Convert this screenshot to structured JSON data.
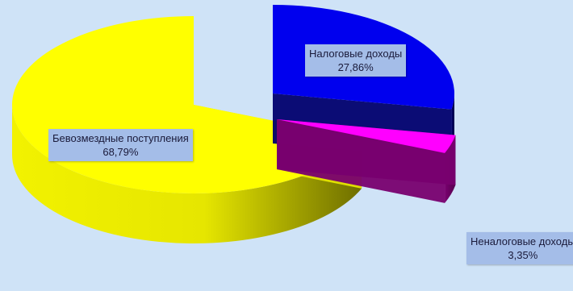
{
  "chart_data": {
    "type": "pie",
    "title": "",
    "three_d": true,
    "exploded": true,
    "slices": [
      {
        "label": "Налоговые доходы",
        "value": 27.86,
        "value_text": "27,86%",
        "color": "#0000ee"
      },
      {
        "label": "Неналоговые доходы",
        "value": 3.35,
        "value_text": "3,35%",
        "color": "#ff00ff"
      },
      {
        "label": "Бевозмездные поступления",
        "value": 68.79,
        "value_text": "68,79%",
        "color": "#ffff00"
      }
    ]
  }
}
